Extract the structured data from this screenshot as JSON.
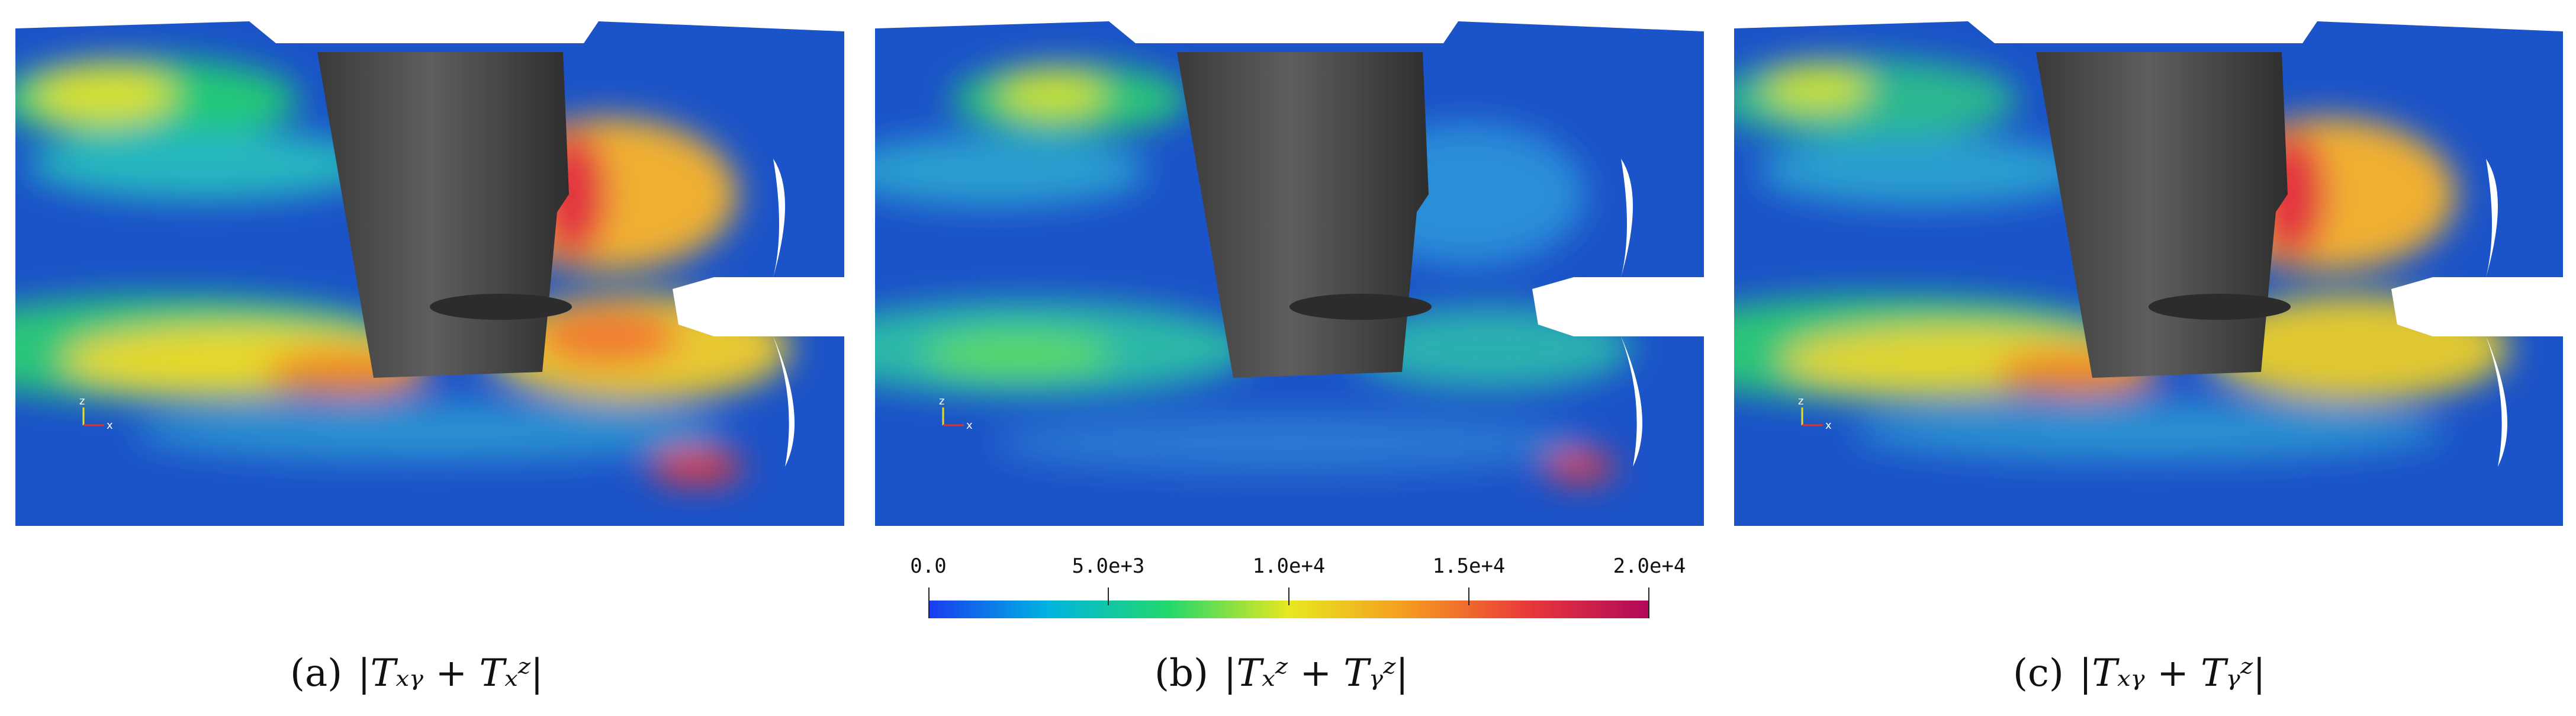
{
  "panels": [
    {
      "id": "a",
      "tag": "(a)",
      "formula": "|Tₓᵧ + Tₓᶻ|",
      "axis_labels": {
        "vertical": "z",
        "horizontal": "x"
      }
    },
    {
      "id": "b",
      "tag": "(b)",
      "formula": "|Tₓᶻ + Tᵧᶻ|",
      "axis_labels": {
        "vertical": "z",
        "horizontal": "x"
      }
    },
    {
      "id": "c",
      "tag": "(c)",
      "formula": "|Tₓᵧ + Tᵧᶻ|",
      "axis_labels": {
        "vertical": "z",
        "horizontal": "x"
      }
    }
  ],
  "colorbar": {
    "tick_labels": [
      "0.0",
      "5.0e+3",
      "1.0e+4",
      "1.5e+4",
      "2.0e+4"
    ],
    "colors": [
      "#1a3cf0",
      "#00b4e0",
      "#22d86c",
      "#e8e820",
      "#f59a20",
      "#e8383a",
      "#b0085a"
    ]
  },
  "colors": {
    "field_background": "#1b53c8",
    "hull": "#4a4a4a"
  }
}
